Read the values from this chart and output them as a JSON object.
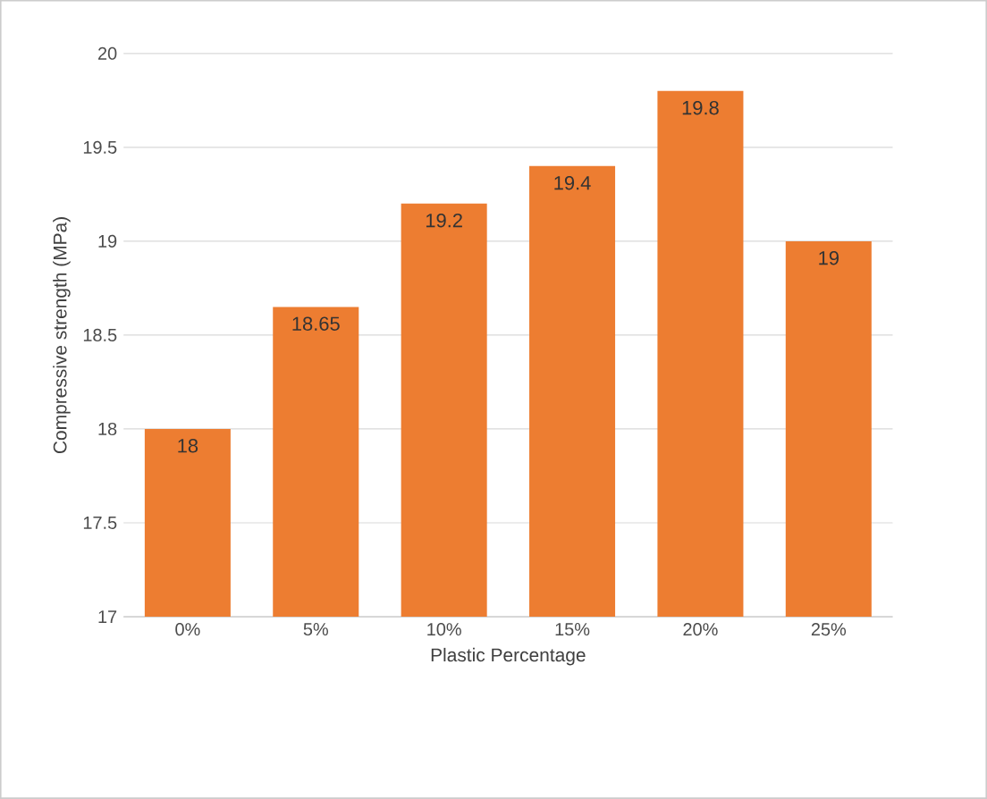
{
  "chart_data": {
    "type": "bar",
    "xlabel": "Plastic Percentage",
    "ylabel": "Compressive strength (MPa)",
    "categories": [
      "0%",
      "5%",
      "10%",
      "15%",
      "20%",
      "25%"
    ],
    "values": [
      18,
      18.65,
      19.2,
      19.4,
      19.8,
      19
    ],
    "color": "#ed7d31",
    "ylim": [
      17,
      20
    ],
    "yticks": [
      17,
      17.5,
      18,
      18.5,
      19,
      19.5,
      20
    ],
    "grid": "y",
    "data_labels": true
  }
}
